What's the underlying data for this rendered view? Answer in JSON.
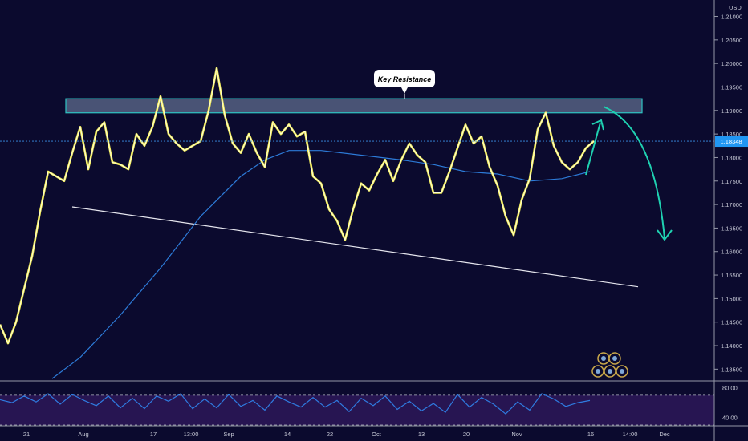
{
  "chart_data": {
    "type": "line",
    "instrument_currency": "USD",
    "last_price": 1.18348,
    "last_price_label": "1.18348",
    "price_axis": {
      "ylim": [
        1.1325,
        1.2135
      ],
      "ticks": [
        "1.21000",
        "1.20500",
        "1.20000",
        "1.19500",
        "1.19000",
        "1.18500",
        "1.18000",
        "1.17500",
        "1.17000",
        "1.16500",
        "1.16000",
        "1.15500",
        "1.15000",
        "1.14500",
        "1.14000",
        "1.13500"
      ]
    },
    "time_axis": {
      "ticks": [
        "21",
        "Aug",
        "17",
        "13:00",
        "Sep",
        "14",
        "22",
        "Oct",
        "13",
        "20",
        "Nov",
        "16",
        "14:00",
        "Dec"
      ]
    },
    "price_series": {
      "name": "",
      "x": [
        0,
        10,
        20,
        30,
        40,
        50,
        60,
        70,
        80,
        90,
        100,
        110,
        120,
        130,
        140,
        150,
        160,
        170,
        180,
        190,
        200,
        210,
        220,
        230,
        240,
        250,
        260,
        270,
        280,
        290,
        300,
        310,
        320,
        330,
        340,
        350,
        360,
        370,
        380,
        390,
        400,
        410,
        420,
        430,
        440,
        450,
        460,
        470,
        480,
        490,
        500,
        510,
        520,
        530,
        540,
        550,
        560,
        570,
        580,
        590,
        600,
        610,
        620,
        630,
        640,
        650,
        660,
        670,
        680,
        690,
        700,
        710,
        720,
        730,
        740
      ],
      "y": [
        1.1445,
        1.1405,
        1.145,
        1.152,
        1.159,
        1.1685,
        1.177,
        1.176,
        1.175,
        1.181,
        1.1865,
        1.1775,
        1.1855,
        1.1875,
        1.179,
        1.1785,
        1.1775,
        1.185,
        1.1825,
        1.1865,
        1.193,
        1.185,
        1.183,
        1.1815,
        1.1825,
        1.1835,
        1.19,
        1.199,
        1.189,
        1.183,
        1.181,
        1.185,
        1.181,
        1.178,
        1.1875,
        1.185,
        1.187,
        1.1845,
        1.1855,
        1.176,
        1.1745,
        1.169,
        1.1665,
        1.1625,
        1.169,
        1.1745,
        1.173,
        1.1765,
        1.1795,
        1.175,
        1.1795,
        1.183,
        1.1805,
        1.179,
        1.1725,
        1.1725,
        1.177,
        1.182,
        1.187,
        1.183,
        1.1845,
        1.178,
        1.174,
        1.1675,
        1.1635,
        1.171,
        1.1755,
        1.186,
        1.1895,
        1.1825,
        1.179,
        1.1775,
        1.179,
        1.182,
        1.1835
      ]
    },
    "moving_average": {
      "name": "",
      "x": [
        65,
        100,
        150,
        200,
        250,
        300,
        330,
        360,
        400,
        450,
        500,
        540,
        580,
        620,
        660,
        700,
        735
      ],
      "y": [
        1.133,
        1.1375,
        1.1465,
        1.1565,
        1.1675,
        1.176,
        1.1795,
        1.1815,
        1.1815,
        1.1805,
        1.1795,
        1.1785,
        1.177,
        1.1765,
        1.175,
        1.1755,
        1.177
      ]
    },
    "resistance_zone": {
      "label": "Key Resistance",
      "y_low": 1.1895,
      "y_high": 1.1925,
      "x_start": 82,
      "x_end": 800
    },
    "support_trendline": {
      "x": [
        90,
        795
      ],
      "y": [
        1.1695,
        1.1525
      ]
    },
    "rsi": {
      "ylim": [
        30,
        86
      ],
      "ticks": [
        "80.00",
        "40.00"
      ],
      "upper_band": 70,
      "lower_band": 30,
      "x": [
        0,
        15,
        30,
        45,
        60,
        75,
        90,
        105,
        120,
        135,
        150,
        165,
        180,
        195,
        210,
        225,
        240,
        255,
        270,
        285,
        300,
        315,
        330,
        345,
        360,
        375,
        390,
        405,
        420,
        435,
        450,
        465,
        480,
        495,
        510,
        525,
        540,
        555,
        570,
        585,
        600,
        615,
        630,
        645,
        660,
        675,
        690,
        705,
        720,
        735
      ],
      "y": [
        64,
        60,
        69,
        61,
        72,
        58,
        71,
        63,
        56,
        69,
        53,
        66,
        52,
        69,
        62,
        72,
        52,
        65,
        53,
        71,
        55,
        63,
        50,
        69,
        61,
        54,
        67,
        54,
        63,
        48,
        66,
        56,
        69,
        51,
        62,
        49,
        59,
        47,
        71,
        54,
        67,
        58,
        45,
        61,
        50,
        72,
        65,
        55,
        60,
        63
      ]
    }
  }
}
